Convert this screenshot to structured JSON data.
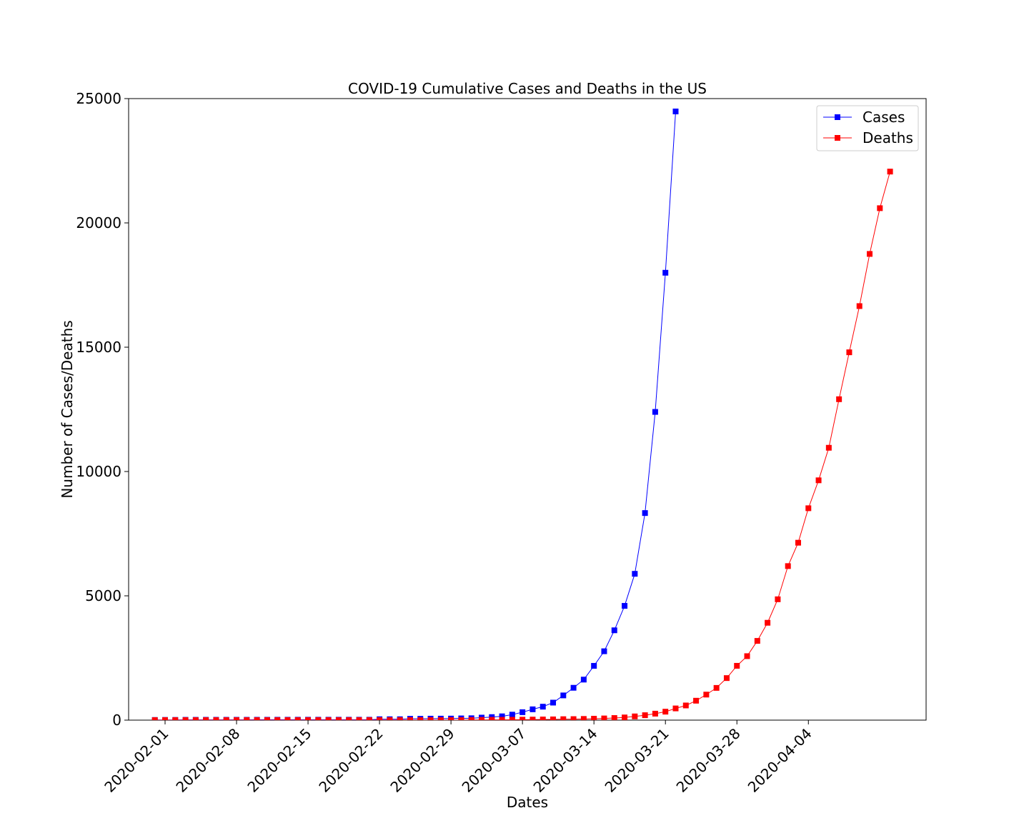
{
  "chart_data": {
    "type": "line",
    "title": "COVID-19 Cumulative Cases and Deaths in the US",
    "xlabel": "Dates",
    "ylabel": "Number of Cases/Deaths",
    "ylim": [
      0,
      25000
    ],
    "yticks": [
      "0",
      "5000",
      "10000",
      "15000",
      "20000",
      "25000"
    ],
    "xticks": [
      "2020-02-01",
      "2020-02-08",
      "2020-02-15",
      "2020-02-22",
      "2020-02-29",
      "2020-03-07",
      "2020-03-14",
      "2020-03-21",
      "2020-03-28",
      "2020-04-04"
    ],
    "grid": false,
    "legend_position": "top-right",
    "series": [
      {
        "name": "Cases",
        "color": "#0000ff",
        "marker": "square",
        "start_date": "2020-01-31",
        "values": [
          6,
          8,
          8,
          11,
          11,
          12,
          12,
          12,
          12,
          12,
          13,
          13,
          14,
          14,
          15,
          15,
          15,
          15,
          15,
          15,
          15,
          15,
          35,
          35,
          35,
          53,
          53,
          59,
          60,
          62,
          70,
          76,
          101,
          122,
          153,
          221,
          319,
          435,
          541,
          704,
          994,
          1301,
          1630,
          2183,
          2770,
          3613,
          4596,
          5885,
          8329,
          12397,
          17995,
          24483
        ]
      },
      {
        "name": "Deaths",
        "color": "#ff0000",
        "marker": "square",
        "start_date": "2020-01-31",
        "values": [
          0,
          0,
          0,
          0,
          0,
          0,
          0,
          0,
          0,
          0,
          0,
          0,
          0,
          0,
          0,
          0,
          0,
          0,
          0,
          0,
          0,
          0,
          0,
          0,
          0,
          0,
          0,
          0,
          0,
          1,
          1,
          6,
          9,
          11,
          12,
          15,
          19,
          22,
          26,
          30,
          38,
          41,
          48,
          57,
          68,
          85,
          108,
          150,
          198,
          260,
          340,
          471,
          590,
          781,
          1027,
          1296,
          1691,
          2185,
          2573,
          3187,
          3916,
          4861,
          6196,
          7136,
          8523,
          9646,
          10955,
          12908,
          14795,
          16654,
          18752,
          20592,
          22064
        ]
      }
    ]
  }
}
